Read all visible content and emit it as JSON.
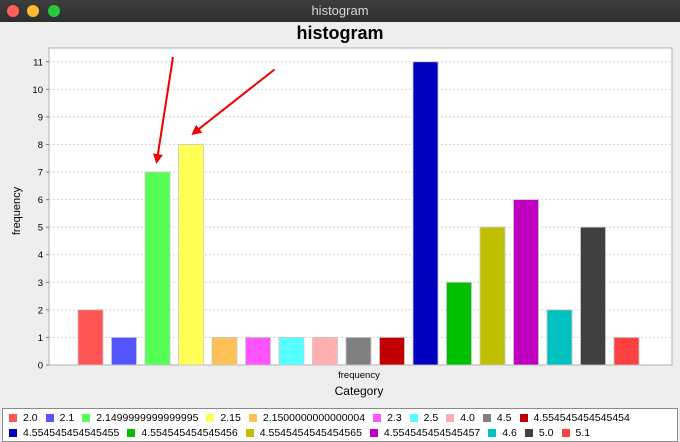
{
  "window": {
    "title": "histogram"
  },
  "chart_data": {
    "type": "bar",
    "title": "histogram",
    "xlabel": "Category",
    "ylabel": "frequency",
    "series_label": "frequency",
    "ylim": [
      0,
      11.5
    ],
    "yticks": [
      0,
      1,
      2,
      3,
      4,
      5,
      6,
      7,
      8,
      9,
      10,
      11
    ],
    "grid": true,
    "legend_position": "bottom",
    "bars": [
      {
        "label": "2.0",
        "value": 2,
        "color": "#ff5555"
      },
      {
        "label": "2.1",
        "value": 1,
        "color": "#5555ff"
      },
      {
        "label": "2.1499999999999995",
        "value": 7,
        "color": "#55ff55"
      },
      {
        "label": "2.15",
        "value": 8,
        "color": "#ffff55"
      },
      {
        "label": "2.1500000000000004",
        "value": 1,
        "color": "#ffc055"
      },
      {
        "label": "2.3",
        "value": 1,
        "color": "#ff55ff"
      },
      {
        "label": "2.5",
        "value": 1,
        "color": "#55ffff"
      },
      {
        "label": "4.0",
        "value": 1,
        "color": "#ffafaf"
      },
      {
        "label": "4.5",
        "value": 1,
        "color": "#808080"
      },
      {
        "label": "4.554545454545454",
        "value": 1,
        "color": "#c00000"
      },
      {
        "label": "4.554545454545455",
        "value": 11,
        "color": "#0000c0"
      },
      {
        "label": "4.554545454545456",
        "value": 3,
        "color": "#00c000"
      },
      {
        "label": "4.5545454545454565",
        "value": 5,
        "color": "#c0c000"
      },
      {
        "label": "4.554545454545457",
        "value": 6,
        "color": "#c000c0"
      },
      {
        "label": "4.6",
        "value": 2,
        "color": "#00c0c0"
      },
      {
        "label": "5.0",
        "value": 5,
        "color": "#404040"
      },
      {
        "label": "5.1",
        "value": 1,
        "color": "#ff4040"
      }
    ],
    "annotations": [
      {
        "type": "arrow",
        "points_to": "2.1499999999999995",
        "color": "#ee0000"
      },
      {
        "type": "arrow",
        "points_to": "2.15",
        "color": "#ee0000"
      }
    ]
  }
}
